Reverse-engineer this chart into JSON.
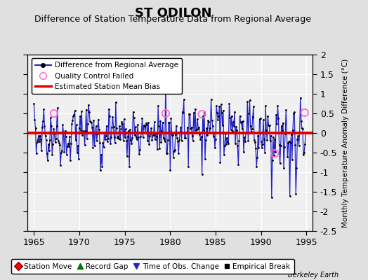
{
  "title": "ST ODILON",
  "subtitle": "Difference of Station Temperature Data from Regional Average",
  "ylabel": "Monthly Temperature Anomaly Difference (°C)",
  "ylim": [
    -2.5,
    2.0
  ],
  "yticks": [
    -2.5,
    -2.0,
    -1.5,
    -1.0,
    -0.5,
    0.0,
    0.5,
    1.0,
    1.5,
    2.0
  ],
  "xticks": [
    1965,
    1970,
    1975,
    1980,
    1985,
    1990,
    1995
  ],
  "xlim": [
    1964.3,
    1995.7
  ],
  "mean_bias": 0.0,
  "bg_color": "#e0e0e0",
  "plot_bg_color": "#f0f0f0",
  "line_color": "#2222cc",
  "dot_color": "#000000",
  "bias_color": "#dd0000",
  "qc_color": "#ff66cc",
  "title_fontsize": 13,
  "subtitle_fontsize": 9,
  "watermark": "Berkeley Earth",
  "seed": 42
}
